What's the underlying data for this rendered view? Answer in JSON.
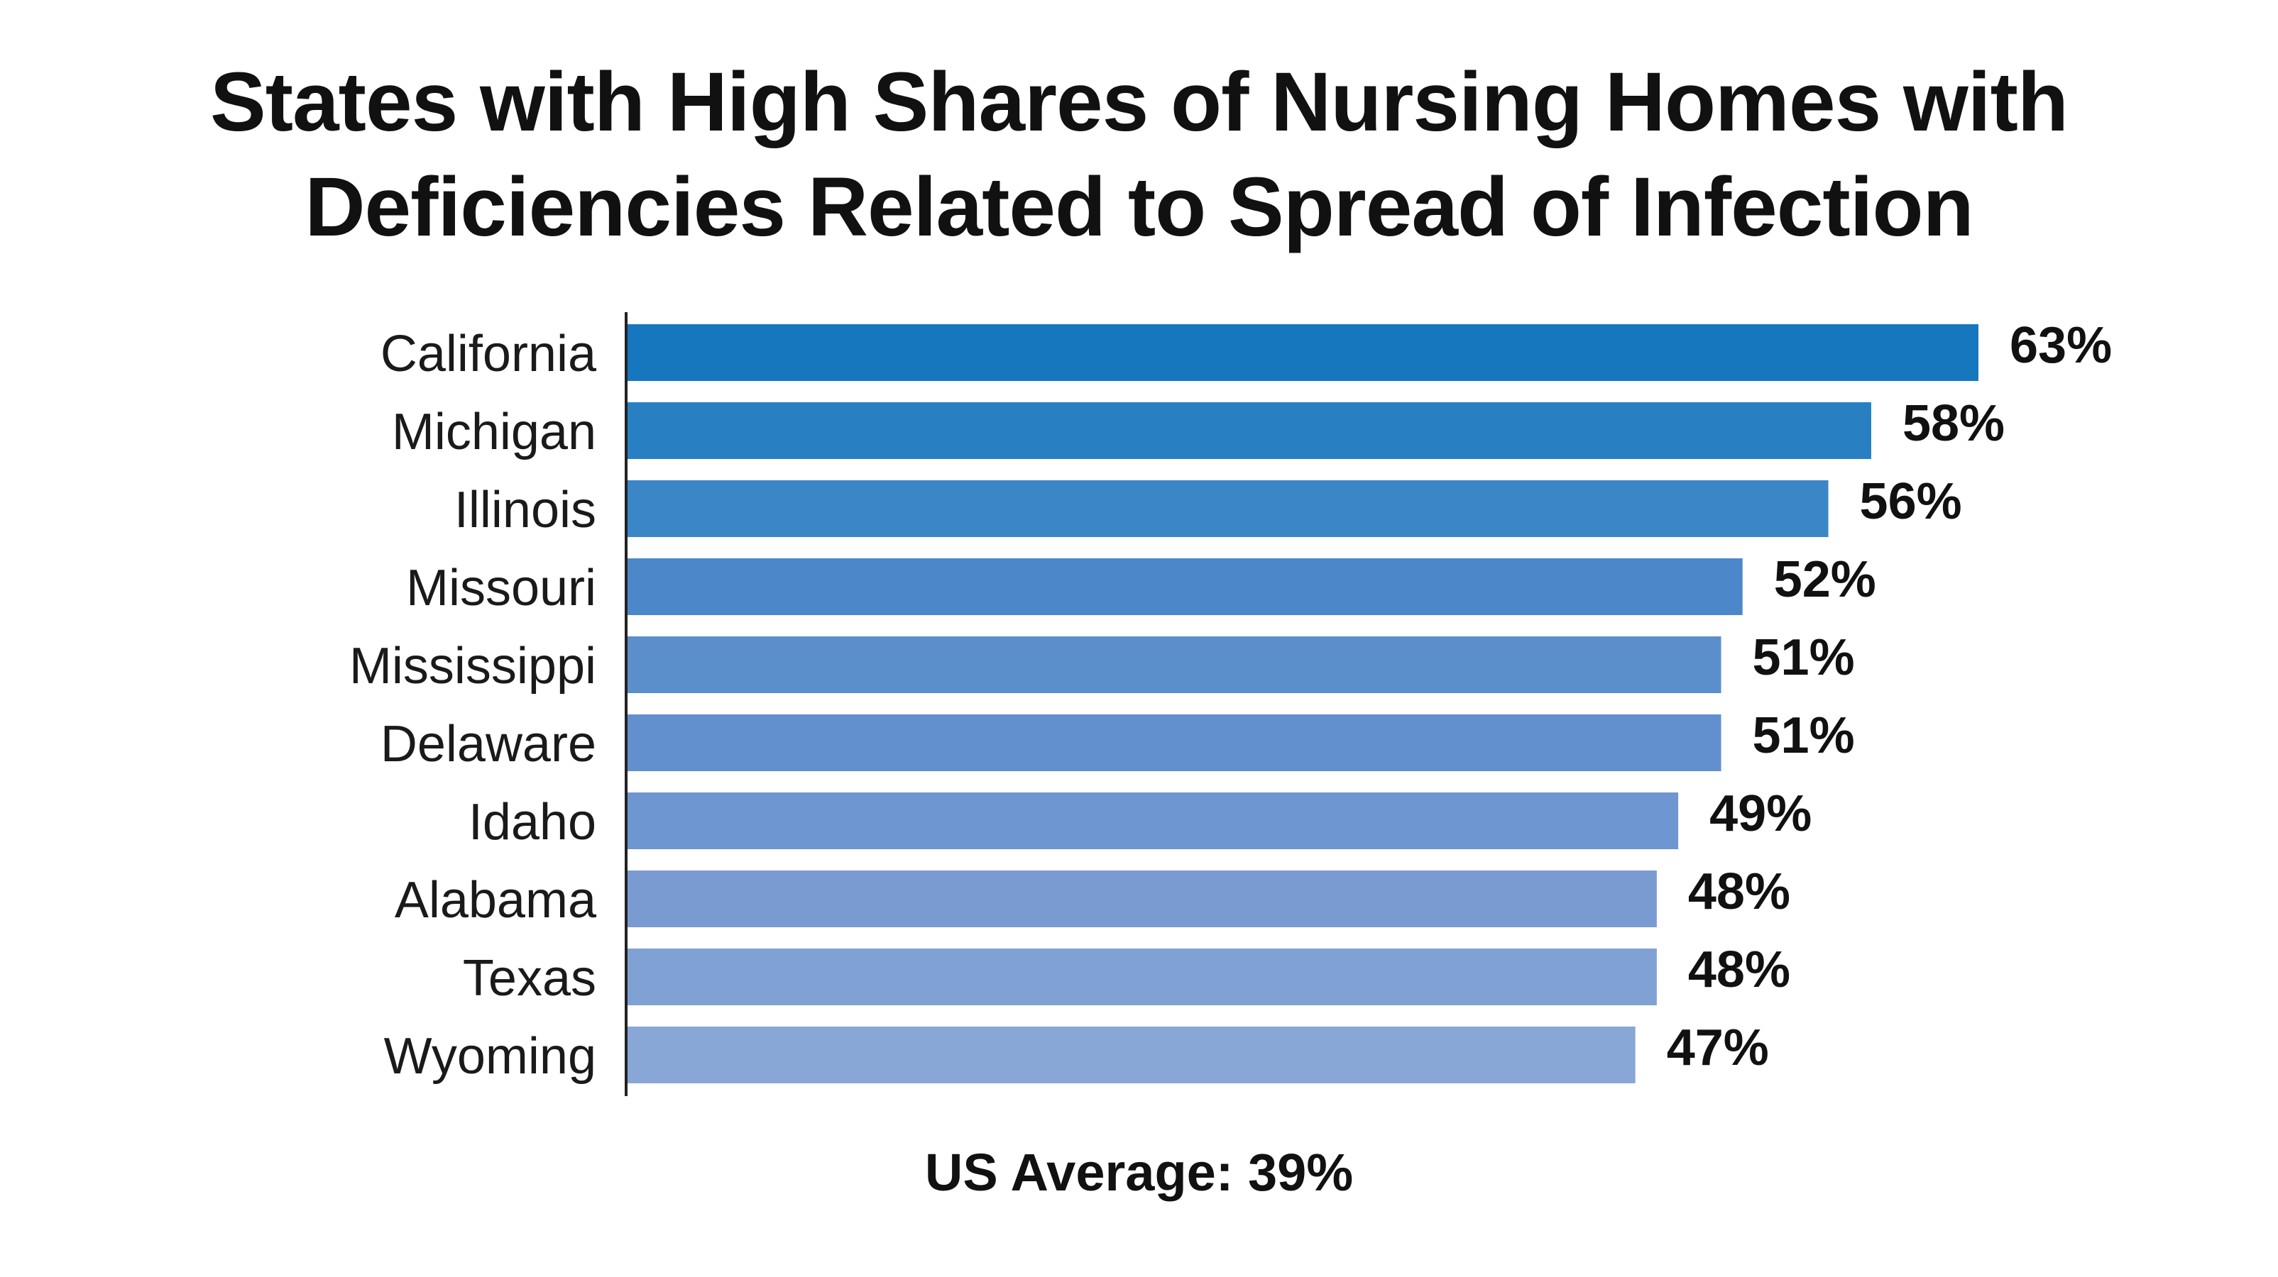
{
  "chart_data": {
    "type": "bar",
    "orientation": "horizontal",
    "title_lines": [
      "States with High Shares of Nursing Homes with",
      "Deficiencies Related to Spread of Infection"
    ],
    "categories": [
      "California",
      "Michigan",
      "Illinois",
      "Missouri",
      "Mississippi",
      "Delaware",
      "Idaho",
      "Alabama",
      "Texas",
      "Wyoming"
    ],
    "values": [
      63,
      58,
      56,
      52,
      51,
      51,
      49,
      48,
      48,
      47
    ],
    "value_labels": [
      "63%",
      "58%",
      "56%",
      "52%",
      "51%",
      "51%",
      "49%",
      "48%",
      "48%",
      "47%"
    ],
    "bar_colors": [
      "#1777be",
      "#2880c3",
      "#3a86c6",
      "#4c88c9",
      "#5b8fcc",
      "#628fce",
      "#6e96d0",
      "#7a9ad2",
      "#80a1d4",
      "#88a7d7"
    ],
    "xlim": [
      0,
      63
    ],
    "grid": false,
    "footnote": "US Average: 39%"
  }
}
